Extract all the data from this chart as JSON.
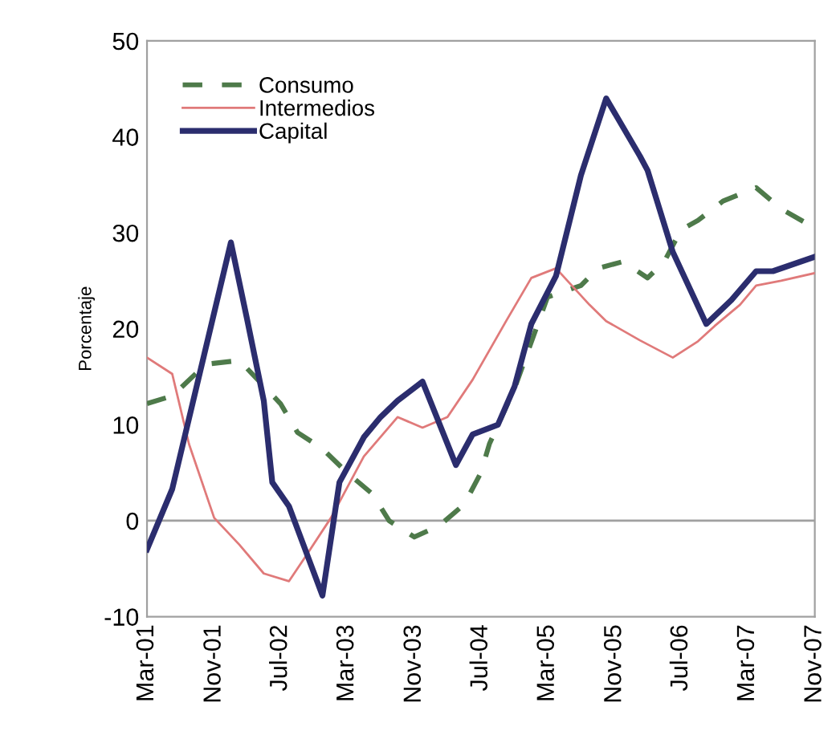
{
  "chart_data": {
    "type": "line",
    "ylabel": "Porcentaje",
    "xlim": [
      "2001-03",
      "2007-11"
    ],
    "xticks": [
      {
        "value": "2001-03",
        "label": "Mar-01"
      },
      {
        "value": "2001-11",
        "label": "Nov-01"
      },
      {
        "value": "2002-07",
        "label": "Jul-02"
      },
      {
        "value": "2003-03",
        "label": "Mar-03"
      },
      {
        "value": "2003-11",
        "label": "Nov-03"
      },
      {
        "value": "2004-07",
        "label": "Jul-04"
      },
      {
        "value": "2005-03",
        "label": "Mar-05"
      },
      {
        "value": "2005-11",
        "label": "Nov-05"
      },
      {
        "value": "2006-07",
        "label": "Jul-06"
      },
      {
        "value": "2007-03",
        "label": "Mar-07"
      },
      {
        "value": "2007-11",
        "label": "Nov-07"
      }
    ],
    "ylim": [
      -10,
      50
    ],
    "yticks": [
      -10,
      0,
      10,
      20,
      30,
      40,
      50
    ],
    "grid": false,
    "legend": "top left",
    "ref_lines": [
      {
        "axis": "y",
        "value": 0,
        "color": "#a0a0a0"
      }
    ],
    "series": [
      {
        "name": "Consumo",
        "color": "#4e7a4a",
        "line_style": "dashed",
        "x": [
          "2001-03",
          "2001-06",
          "2001-10",
          "2002-02",
          "2002-07",
          "2002-09",
          "2002-12",
          "2003-03",
          "2003-06",
          "2003-08",
          "2003-11",
          "2004-02",
          "2004-05",
          "2004-07",
          "2004-08",
          "2004-11",
          "2005-03",
          "2005-07",
          "2005-09",
          "2005-12",
          "2006-03",
          "2006-05",
          "2006-07",
          "2006-09",
          "2006-12",
          "2007-04",
          "2007-07",
          "2007-11"
        ],
        "values": [
          12.2,
          13,
          16.3,
          16.7,
          12.2,
          9.2,
          7.5,
          5,
          2.8,
          0,
          -1.7,
          -0.5,
          1.7,
          5,
          8,
          13.8,
          23.3,
          24.5,
          26.3,
          27,
          25.3,
          27,
          30.3,
          31.3,
          33.3,
          34.7,
          32.5,
          30.5
        ]
      },
      {
        "name": "Intermedios",
        "color": "#e07a7a",
        "line_style": "solid",
        "x": [
          "2001-03",
          "2001-06",
          "2001-08",
          "2001-11",
          "2002-02",
          "2002-05",
          "2002-08",
          "2002-10",
          "2003-01",
          "2003-05",
          "2003-09",
          "2003-12",
          "2004-03",
          "2004-06",
          "2004-10",
          "2005-01",
          "2005-04",
          "2005-08",
          "2005-10",
          "2006-02",
          "2006-06",
          "2006-09",
          "2006-11",
          "2007-02",
          "2007-04",
          "2007-07",
          "2007-11"
        ],
        "values": [
          17,
          15.3,
          8,
          0.3,
          -2.5,
          -5.5,
          -6.3,
          -3.7,
          0.3,
          6.7,
          10.8,
          9.7,
          10.8,
          14.7,
          20.8,
          25.3,
          26.3,
          22.5,
          20.8,
          18.8,
          17,
          18.7,
          20.3,
          22.5,
          24.5,
          25,
          25.8
        ]
      },
      {
        "name": "Capital",
        "color": "#2b2d6e",
        "line_style": "solid",
        "x": [
          "2001-03",
          "2001-06",
          "2002-01",
          "2002-03",
          "2002-05",
          "2002-06",
          "2002-08",
          "2002-12",
          "2003-02",
          "2003-05",
          "2003-07",
          "2003-09",
          "2003-12",
          "2004-04",
          "2004-06",
          "2004-09",
          "2004-11",
          "2005-01",
          "2005-04",
          "2005-07",
          "2005-10",
          "2006-02",
          "2006-03",
          "2006-06",
          "2006-10",
          "2007-01",
          "2007-04",
          "2007-06",
          "2007-11"
        ],
        "values": [
          -3,
          3.3,
          29,
          21,
          12.5,
          4,
          1.5,
          -7.8,
          4,
          8.7,
          10.8,
          12.5,
          14.5,
          5.8,
          9,
          10,
          14,
          20.5,
          25.5,
          36,
          44,
          38,
          36.5,
          28,
          20.5,
          23,
          26,
          26,
          27.5
        ]
      }
    ]
  }
}
